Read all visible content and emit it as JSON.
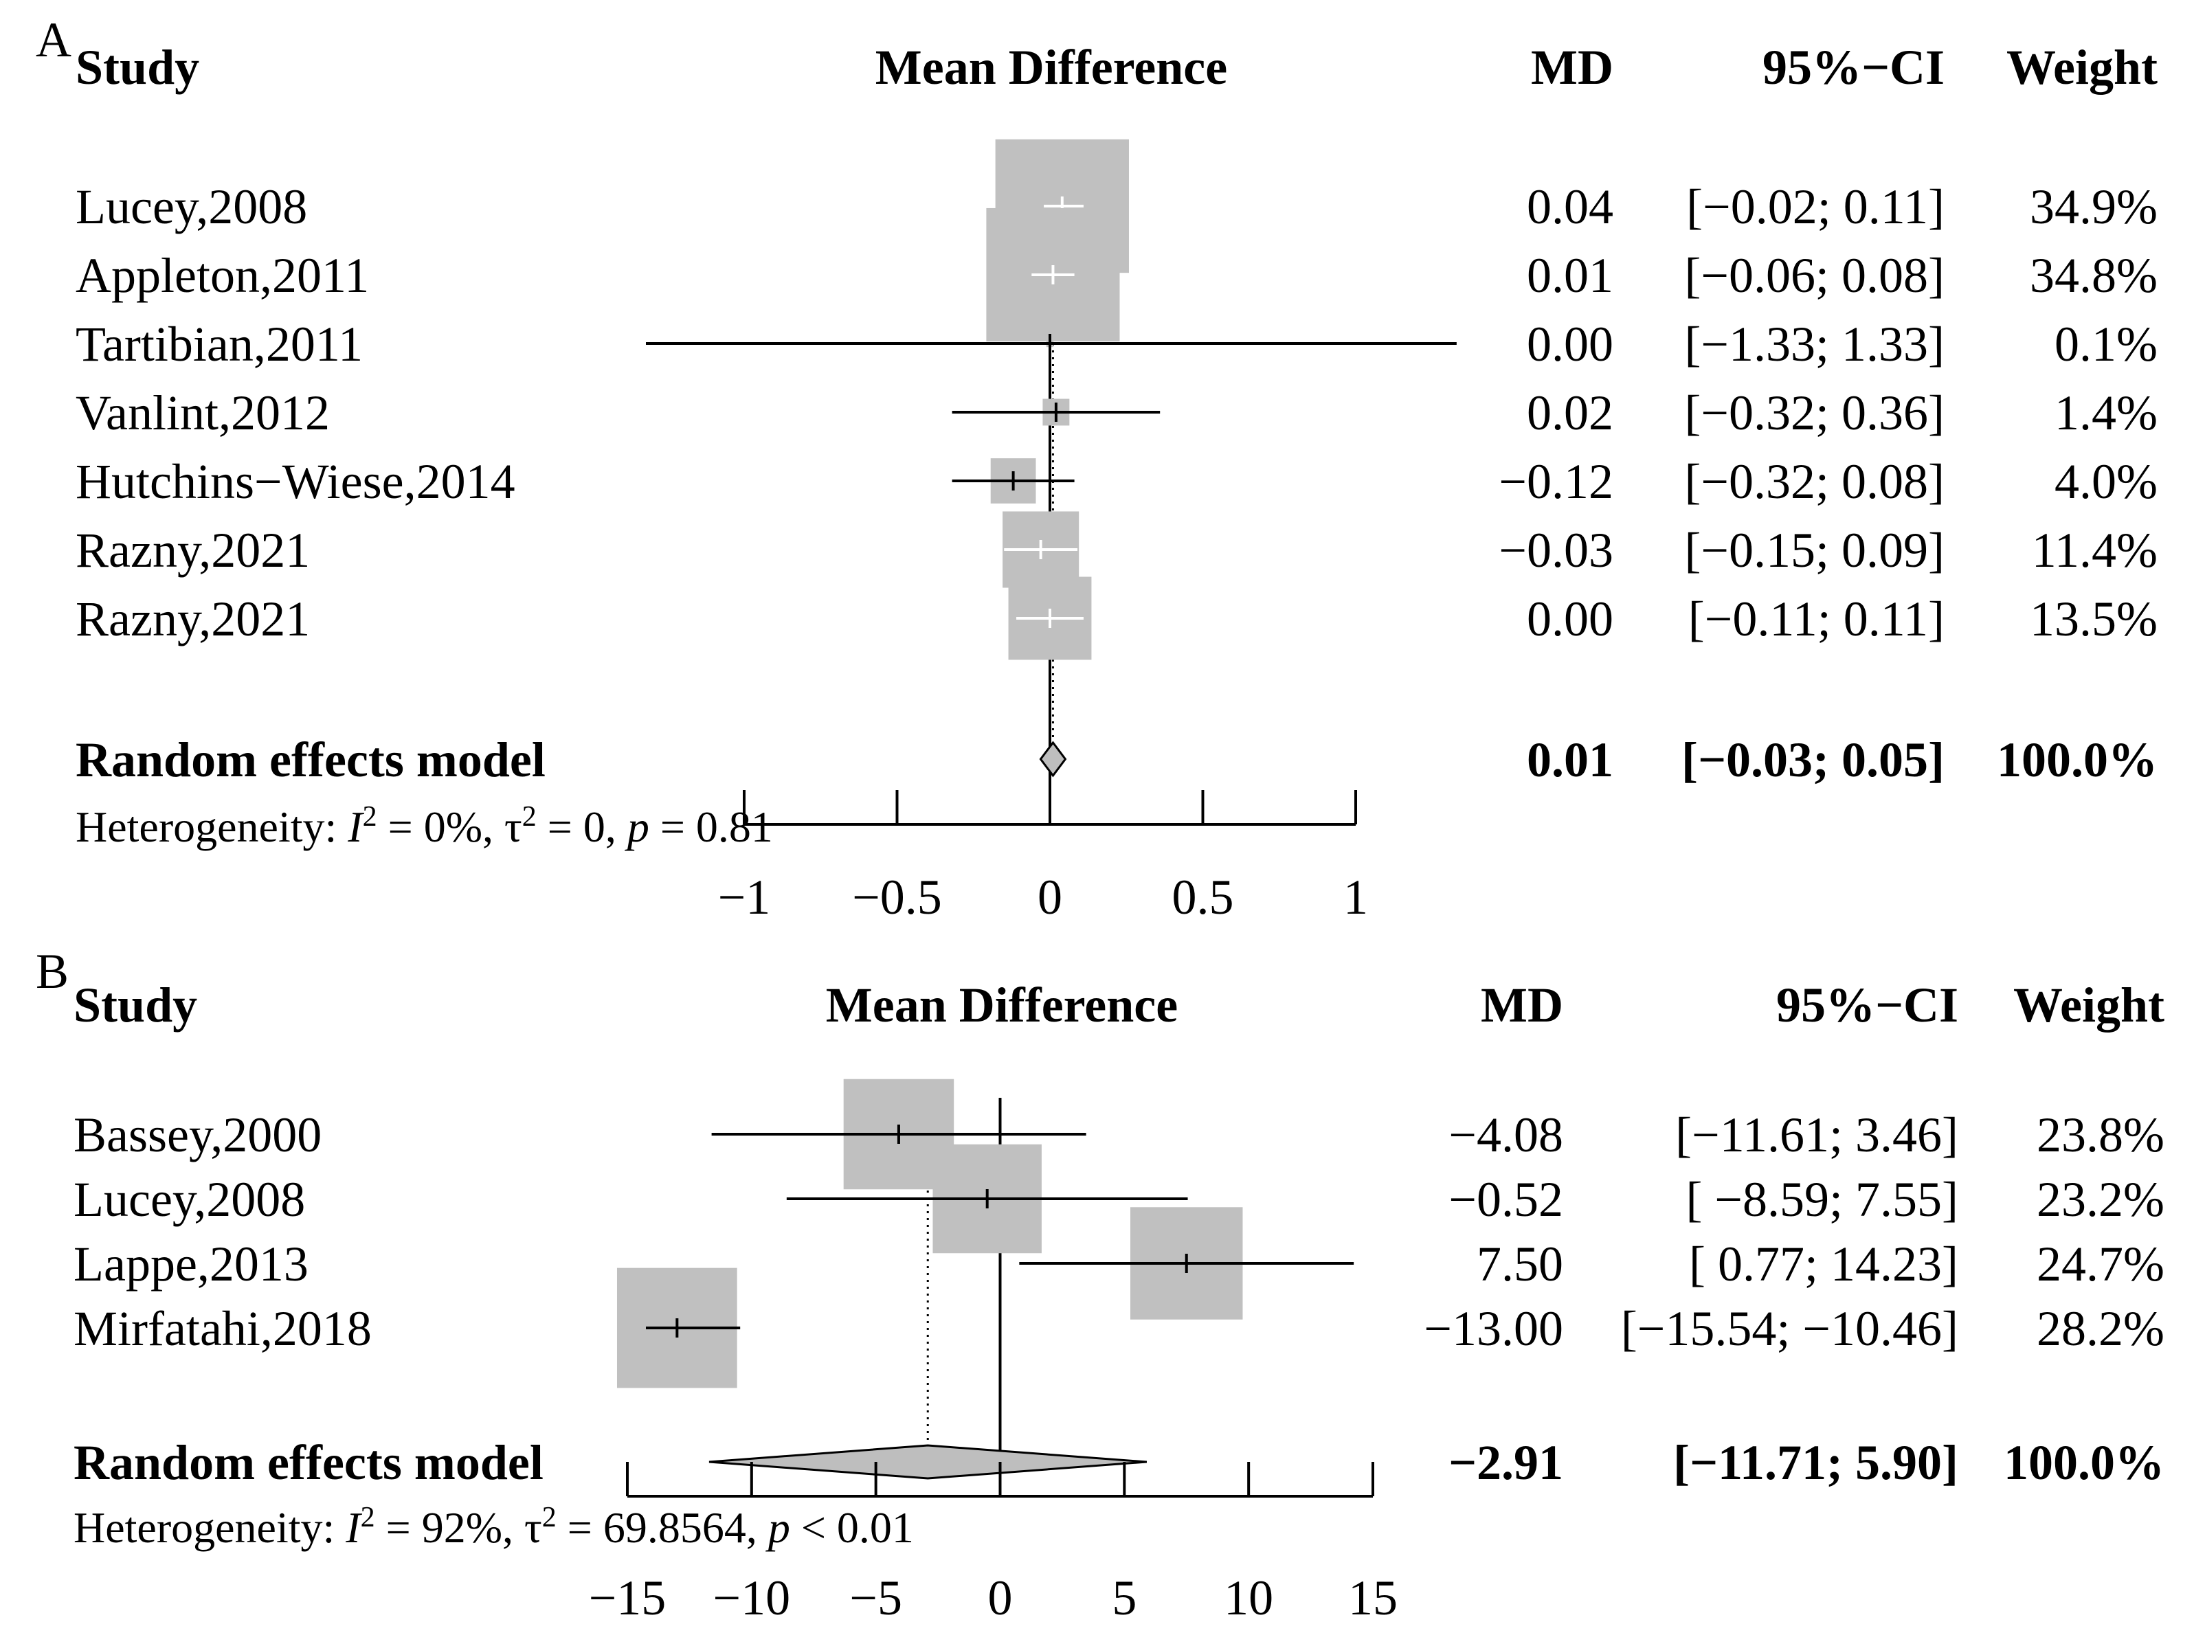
{
  "chart_data": [
    {
      "type": "forest",
      "panel_label": "A",
      "columns": {
        "study": "Study",
        "plot": "Mean Difference",
        "md": "MD",
        "ci": "95%−CI",
        "weight": "Weight"
      },
      "xlim": [
        -1,
        1
      ],
      "ticks": [
        -1,
        -0.5,
        0,
        0.5,
        1
      ],
      "tick_labels": [
        "−1",
        "−0.5",
        "0",
        "0.5",
        "1"
      ],
      "studies": [
        {
          "name": "Lucey,2008",
          "md": 0.04,
          "lower": -0.02,
          "upper": 0.11,
          "weight": 34.9,
          "md_text": "0.04",
          "ci_text": "[−0.02; 0.11]",
          "weight_text": "34.9%"
        },
        {
          "name": "Appleton,2011",
          "md": 0.01,
          "lower": -0.06,
          "upper": 0.08,
          "weight": 34.8,
          "md_text": "0.01",
          "ci_text": "[−0.06; 0.08]",
          "weight_text": "34.8%"
        },
        {
          "name": "Tartibian,2011",
          "md": 0.0,
          "lower": -1.33,
          "upper": 1.33,
          "weight": 0.1,
          "md_text": "0.00",
          "ci_text": "[−1.33; 1.33]",
          "weight_text": "0.1%"
        },
        {
          "name": "Vanlint,2012",
          "md": 0.02,
          "lower": -0.32,
          "upper": 0.36,
          "weight": 1.4,
          "md_text": "0.02",
          "ci_text": "[−0.32; 0.36]",
          "weight_text": "1.4%"
        },
        {
          "name": "Hutchins−Wiese,2014",
          "md": -0.12,
          "lower": -0.32,
          "upper": 0.08,
          "weight": 4.0,
          "md_text": "−0.12",
          "ci_text": "[−0.32; 0.08]",
          "weight_text": "4.0%"
        },
        {
          "name": "Razny,2021",
          "md": -0.03,
          "lower": -0.15,
          "upper": 0.09,
          "weight": 11.4,
          "md_text": "−0.03",
          "ci_text": "[−0.15; 0.09]",
          "weight_text": "11.4%"
        },
        {
          "name": "Razny,2021",
          "md": 0.0,
          "lower": -0.11,
          "upper": 0.11,
          "weight": 13.5,
          "md_text": "0.00",
          "ci_text": "[−0.11; 0.11]",
          "weight_text": "13.5%"
        }
      ],
      "pooled": {
        "name": "Random effects model",
        "md": 0.01,
        "lower": -0.03,
        "upper": 0.05,
        "md_text": "0.01",
        "ci_text": "[−0.03; 0.05]",
        "weight_text": "100.0%"
      },
      "heterogeneity": {
        "prefix": "Heterogeneity: ",
        "i2_symbol": "I",
        "sup": "2",
        "i2_value": " = 0%, ",
        "tau_symbol": "τ",
        "tau_value": " = 0, ",
        "p_symbol": "p",
        "p_value": " = 0.81"
      }
    },
    {
      "type": "forest",
      "panel_label": "B",
      "columns": {
        "study": "Study",
        "plot": "Mean Difference",
        "md": "MD",
        "ci": "95%−CI",
        "weight": "Weight"
      },
      "xlim": [
        -15,
        15
      ],
      "ticks": [
        -15,
        -10,
        -5,
        0,
        5,
        10,
        15
      ],
      "tick_labels": [
        "−15",
        "−10",
        "−5",
        "0",
        "5",
        "10",
        "15"
      ],
      "studies": [
        {
          "name": "Bassey,2000",
          "md": -4.08,
          "lower": -11.61,
          "upper": 3.46,
          "weight": 23.8,
          "md_text": "−4.08",
          "ci_text": "[−11.61;   3.46]",
          "weight_text": "23.8%"
        },
        {
          "name": "Lucey,2008",
          "md": -0.52,
          "lower": -8.59,
          "upper": 7.55,
          "weight": 23.2,
          "md_text": "−0.52",
          "ci_text": "[ −8.59;   7.55]",
          "weight_text": "23.2%"
        },
        {
          "name": "Lappe,2013",
          "md": 7.5,
          "lower": 0.77,
          "upper": 14.23,
          "weight": 24.7,
          "md_text": "7.50",
          "ci_text": "[  0.77;  14.23]",
          "weight_text": "24.7%"
        },
        {
          "name": "Mirfatahi,2018",
          "md": -13.0,
          "lower": -15.54,
          "upper": -10.46,
          "weight": 28.2,
          "md_text": "−13.00",
          "ci_text": "[−15.54; −10.46]",
          "weight_text": "28.2%"
        }
      ],
      "pooled": {
        "name": "Random effects model",
        "md": -2.91,
        "lower": -11.71,
        "upper": 5.9,
        "md_text": "−2.91",
        "ci_text": "[−11.71;   5.90]",
        "weight_text": "100.0%"
      },
      "heterogeneity": {
        "prefix": "Heterogeneity: ",
        "i2_symbol": "I",
        "sup": "2",
        "i2_value": " = 92%, ",
        "tau_symbol": "τ",
        "tau_value": " = 69.8564, ",
        "p_symbol": "p",
        "p_value": " < 0.01"
      }
    }
  ],
  "colors": {
    "box": "#c0c0c0",
    "diamond": "#bebebe",
    "line": "#000000"
  }
}
